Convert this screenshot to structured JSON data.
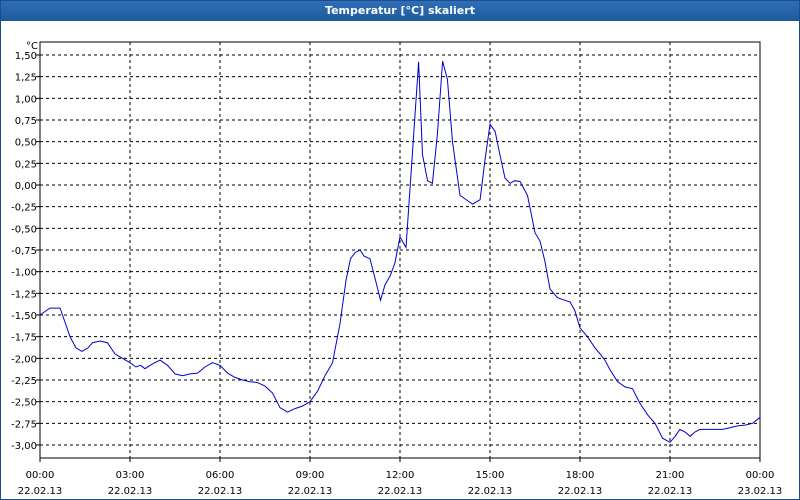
{
  "window": {
    "title": "Temperatur [°C] skaliert"
  },
  "chart_data": {
    "type": "line",
    "title": "Temperatur [°C] skaliert",
    "ylabel": "°C",
    "xlabel": "",
    "ylim": [
      -3.15,
      1.65
    ],
    "xlim": [
      0,
      24
    ],
    "grid": true,
    "line_color": "#0000cc",
    "y_ticks": [
      "1,50",
      "1,25",
      "1,00",
      "0,75",
      "0,50",
      "0,25",
      "0,00",
      "-0,25",
      "-0,50",
      "-0,75",
      "-1,00",
      "-1,25",
      "-1,50",
      "-1,75",
      "-2,00",
      "-2,25",
      "-2,50",
      "-2,75",
      "-3,00"
    ],
    "y_tick_values": [
      1.5,
      1.25,
      1.0,
      0.75,
      0.5,
      0.25,
      0.0,
      -0.25,
      -0.5,
      -0.75,
      -1.0,
      -1.25,
      -1.5,
      -1.75,
      -2.0,
      -2.25,
      -2.5,
      -2.75,
      -3.0
    ],
    "x_ticks": [
      {
        "time": "00:00",
        "date": "22.02.13"
      },
      {
        "time": "03:00",
        "date": "22.02.13"
      },
      {
        "time": "06:00",
        "date": "22.02.13"
      },
      {
        "time": "09:00",
        "date": "22.02.13"
      },
      {
        "time": "12:00",
        "date": "22.02.13"
      },
      {
        "time": "15:00",
        "date": "22.02.13"
      },
      {
        "time": "18:00",
        "date": "22.02.13"
      },
      {
        "time": "21:00",
        "date": "22.02.13"
      },
      {
        "time": "00:00",
        "date": "23.02.13"
      }
    ],
    "x_tick_values": [
      0,
      3,
      6,
      9,
      12,
      15,
      18,
      21,
      24
    ],
    "series": [
      {
        "x": [
          0,
          0.33,
          0.67,
          0.75,
          1.0,
          1.2,
          1.4,
          1.6,
          1.75,
          2.0,
          2.25,
          2.5,
          2.75,
          3.0,
          3.2,
          3.35,
          3.5,
          3.67,
          3.83,
          4.0,
          4.25,
          4.5,
          4.75,
          5.0,
          5.25,
          5.5,
          5.75,
          6.0,
          6.25,
          6.5,
          6.75,
          7.0,
          7.25,
          7.5,
          7.75,
          8.0,
          8.25,
          8.5,
          8.75,
          9.0,
          9.25,
          9.5,
          9.75,
          10.0,
          10.2,
          10.35,
          10.5,
          10.67,
          10.8,
          11.0,
          11.2,
          11.35,
          11.5,
          11.67,
          11.83,
          12.0,
          12.2,
          12.45,
          12.62,
          12.75,
          12.92,
          13.08,
          13.25,
          13.42,
          13.58,
          13.75,
          14.0,
          14.25,
          14.42,
          14.67,
          14.83,
          15.0,
          15.17,
          15.33,
          15.5,
          15.67,
          15.83,
          16.0,
          16.25,
          16.5,
          16.67,
          16.83,
          17.0,
          17.25,
          17.5,
          17.67,
          17.83,
          18.0,
          18.25,
          18.5,
          18.67,
          18.83,
          19.0,
          19.25,
          19.5,
          19.75,
          20.0,
          20.25,
          20.5,
          20.75,
          21.0,
          21.17,
          21.33,
          21.5,
          21.67,
          21.83,
          22.0,
          22.25,
          22.5,
          22.75,
          23.0,
          23.25,
          23.5,
          23.75,
          24.0
        ],
        "y": [
          -1.5,
          -1.42,
          -1.42,
          -1.5,
          -1.75,
          -1.88,
          -1.92,
          -1.88,
          -1.82,
          -1.8,
          -1.82,
          -1.95,
          -2.0,
          -2.05,
          -2.1,
          -2.08,
          -2.12,
          -2.08,
          -2.05,
          -2.02,
          -2.08,
          -2.18,
          -2.2,
          -2.18,
          -2.17,
          -2.1,
          -2.05,
          -2.08,
          -2.17,
          -2.22,
          -2.25,
          -2.27,
          -2.28,
          -2.32,
          -2.4,
          -2.57,
          -2.62,
          -2.58,
          -2.55,
          -2.5,
          -2.38,
          -2.2,
          -2.05,
          -1.6,
          -1.1,
          -0.85,
          -0.78,
          -0.75,
          -0.82,
          -0.85,
          -1.12,
          -1.33,
          -1.15,
          -1.05,
          -0.9,
          -0.6,
          -0.72,
          0.55,
          1.42,
          0.35,
          0.05,
          0.02,
          0.6,
          1.43,
          1.22,
          0.5,
          -0.12,
          -0.18,
          -0.22,
          -0.17,
          0.28,
          0.7,
          0.62,
          0.35,
          0.08,
          0.02,
          0.05,
          0.04,
          -0.12,
          -0.55,
          -0.65,
          -0.88,
          -1.2,
          -1.3,
          -1.33,
          -1.35,
          -1.45,
          -1.65,
          -1.75,
          -1.88,
          -1.95,
          -2.02,
          -2.13,
          -2.27,
          -2.33,
          -2.35,
          -2.52,
          -2.65,
          -2.75,
          -2.92,
          -2.97,
          -2.9,
          -2.82,
          -2.85,
          -2.9,
          -2.85,
          -2.82,
          -2.82,
          -2.82,
          -2.82,
          -2.8,
          -2.78,
          -2.77,
          -2.75,
          -2.68
        ]
      }
    ]
  }
}
